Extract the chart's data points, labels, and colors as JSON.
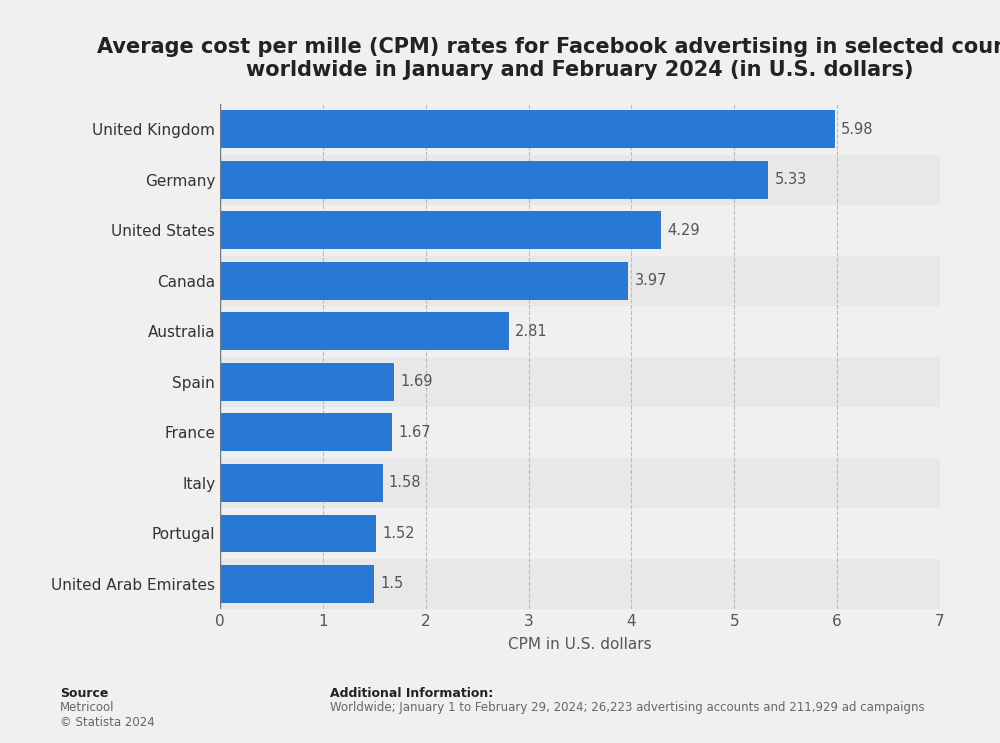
{
  "title": "Average cost per mille (CPM) rates for Facebook advertising in selected countries\nworldwide in January and February 2024 (in U.S. dollars)",
  "categories": [
    "United Arab Emirates",
    "Portugal",
    "Italy",
    "France",
    "Spain",
    "Australia",
    "Canada",
    "United States",
    "Germany",
    "United Kingdom"
  ],
  "values": [
    1.5,
    1.52,
    1.58,
    1.67,
    1.69,
    2.81,
    3.97,
    4.29,
    5.33,
    5.98
  ],
  "bar_color": "#2878d6",
  "background_color": "#f0f0f0",
  "plot_bg_color": "#f0f0f0",
  "row_bg_colors": [
    "#e8e8e8",
    "#f0f0f0"
  ],
  "xlabel": "CPM in U.S. dollars",
  "xlim": [
    0,
    7
  ],
  "xticks": [
    0,
    1,
    2,
    3,
    4,
    5,
    6,
    7
  ],
  "title_fontsize": 15,
  "label_fontsize": 11,
  "tick_fontsize": 11,
  "value_fontsize": 10.5,
  "source_text": "Source",
  "source_detail": "Metricool\n© Statista 2024",
  "additional_info_label": "Additional Information:",
  "additional_info_text": "Worldwide; January 1 to February 29, 2024; 26,223 advertising accounts and 211,929 ad campaigns"
}
